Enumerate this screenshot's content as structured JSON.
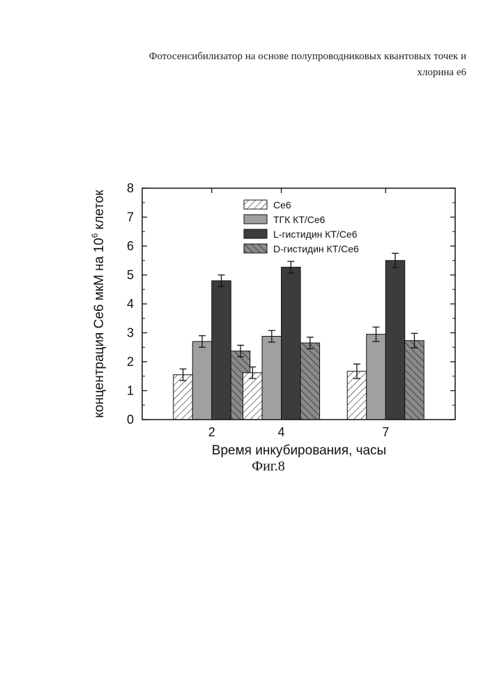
{
  "document": {
    "header_line1": "Фотосенсибилизатор на основе полупроводниковых квантовых точек и",
    "header_line2": "хлорина е6",
    "figure_caption": "Фиг.8"
  },
  "chart_data": {
    "type": "bar",
    "categories": [
      "2",
      "4",
      "7"
    ],
    "x": [
      2,
      4,
      7
    ],
    "series": [
      {
        "name": "Ce6",
        "values": [
          1.55,
          1.62,
          1.67
        ],
        "errors": [
          0.2,
          0.2,
          0.25
        ],
        "fill": "hatch-forward",
        "color": "#ffffff"
      },
      {
        "name": "ТГК КТ/Ce6",
        "values": [
          2.7,
          2.88,
          2.95
        ],
        "errors": [
          0.2,
          0.2,
          0.25
        ],
        "fill": "solid",
        "color": "#a0a0a0"
      },
      {
        "name": "L-гистидин КТ/Ce6",
        "values": [
          4.8,
          5.27,
          5.5
        ],
        "errors": [
          0.2,
          0.2,
          0.25
        ],
        "fill": "solid",
        "color": "#3c3c3c"
      },
      {
        "name": "D-гистидин КТ/Ce6",
        "values": [
          2.37,
          2.65,
          2.73
        ],
        "errors": [
          0.2,
          0.2,
          0.25
        ],
        "fill": "hatch-backward",
        "color": "#8a8a8a"
      }
    ],
    "xlabel": "Время инкубирования, часы",
    "ylabel_main": "концентрация Ce6 мкМ на 10",
    "ylabel_sup": "6",
    "ylabel_tail": " клеток",
    "ylim": [
      0,
      8
    ],
    "yticks": [
      0,
      1,
      2,
      3,
      4,
      5,
      6,
      7,
      8
    ],
    "xlim": [
      0,
      9
    ],
    "grid": false,
    "legend_position": "top-center"
  }
}
